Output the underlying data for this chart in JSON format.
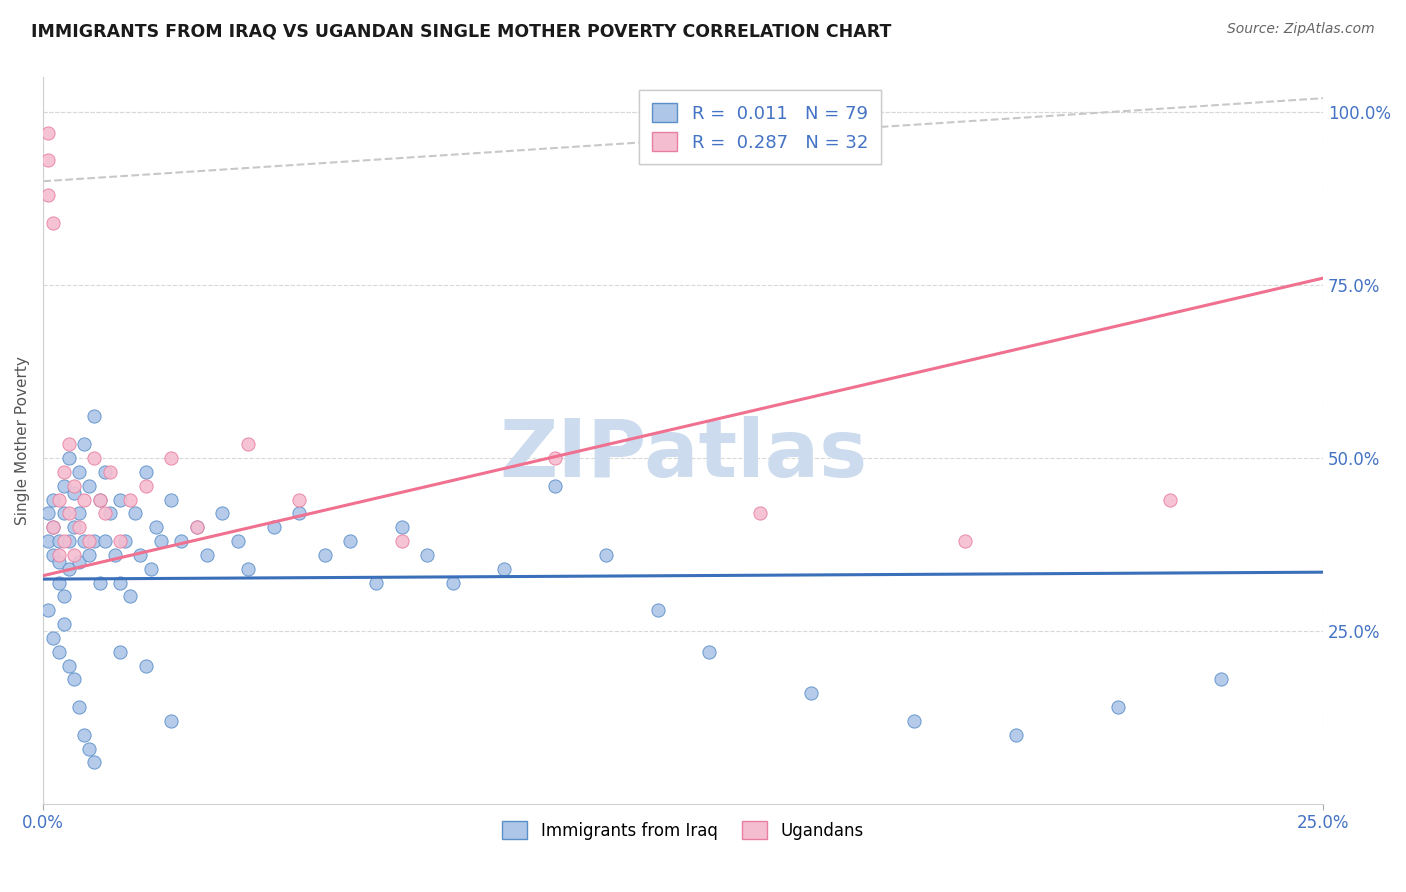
{
  "title": "IMMIGRANTS FROM IRAQ VS UGANDAN SINGLE MOTHER POVERTY CORRELATION CHART",
  "source": "Source: ZipAtlas.com",
  "ylabel": "Single Mother Poverty",
  "legend_label1": "Immigrants from Iraq",
  "legend_label2": "Ugandans",
  "r1": "0.011",
  "n1": "79",
  "r2": "0.287",
  "n2": "32",
  "color_iraq": "#aec6e8",
  "color_iraq_edge": "#5b8fc9",
  "color_uganda": "#f5bdd0",
  "color_uganda_edge": "#e87fa0",
  "color_iraq_line": "#3a6fba",
  "color_uganda_line": "#f07090",
  "color_dashed": "#c8c8c8",
  "watermark_color": "#ccdcee",
  "xlim": [
    0.0,
    0.25
  ],
  "ylim": [
    0.0,
    1.05
  ],
  "yticks": [
    0.25,
    0.5,
    0.75,
    1.0
  ],
  "ytick_labels": [
    "25.0%",
    "50.0%",
    "75.0%",
    "100.0%"
  ],
  "iraq_line_y0": 0.325,
  "iraq_line_y1": 0.335,
  "uganda_line_y0": 0.33,
  "uganda_line_y1": 0.76,
  "dashed_line_x0": 0.0,
  "dashed_line_y0": 0.9,
  "dashed_line_x1": 0.25,
  "dashed_line_y1": 1.02,
  "iraq_points_x": [
    0.001,
    0.001,
    0.002,
    0.002,
    0.002,
    0.003,
    0.003,
    0.003,
    0.004,
    0.004,
    0.004,
    0.005,
    0.005,
    0.005,
    0.006,
    0.006,
    0.007,
    0.007,
    0.007,
    0.008,
    0.008,
    0.009,
    0.009,
    0.01,
    0.01,
    0.011,
    0.011,
    0.012,
    0.012,
    0.013,
    0.014,
    0.015,
    0.015,
    0.016,
    0.017,
    0.018,
    0.019,
    0.02,
    0.021,
    0.022,
    0.023,
    0.025,
    0.027,
    0.03,
    0.032,
    0.035,
    0.038,
    0.04,
    0.045,
    0.05,
    0.055,
    0.06,
    0.065,
    0.07,
    0.075,
    0.08,
    0.09,
    0.1,
    0.11,
    0.12,
    0.13,
    0.15,
    0.17,
    0.19,
    0.21,
    0.23,
    0.001,
    0.002,
    0.003,
    0.004,
    0.005,
    0.006,
    0.007,
    0.008,
    0.009,
    0.01,
    0.015,
    0.02,
    0.025
  ],
  "iraq_points_y": [
    0.38,
    0.42,
    0.36,
    0.4,
    0.44,
    0.32,
    0.35,
    0.38,
    0.42,
    0.46,
    0.3,
    0.34,
    0.38,
    0.5,
    0.4,
    0.45,
    0.35,
    0.42,
    0.48,
    0.38,
    0.52,
    0.36,
    0.46,
    0.38,
    0.56,
    0.32,
    0.44,
    0.38,
    0.48,
    0.42,
    0.36,
    0.32,
    0.44,
    0.38,
    0.3,
    0.42,
    0.36,
    0.48,
    0.34,
    0.4,
    0.38,
    0.44,
    0.38,
    0.4,
    0.36,
    0.42,
    0.38,
    0.34,
    0.4,
    0.42,
    0.36,
    0.38,
    0.32,
    0.4,
    0.36,
    0.32,
    0.34,
    0.46,
    0.36,
    0.28,
    0.22,
    0.16,
    0.12,
    0.1,
    0.14,
    0.18,
    0.28,
    0.24,
    0.22,
    0.26,
    0.2,
    0.18,
    0.14,
    0.1,
    0.08,
    0.06,
    0.22,
    0.2,
    0.12
  ],
  "uganda_points_x": [
    0.001,
    0.001,
    0.001,
    0.002,
    0.002,
    0.003,
    0.003,
    0.004,
    0.004,
    0.005,
    0.005,
    0.006,
    0.006,
    0.007,
    0.008,
    0.009,
    0.01,
    0.011,
    0.012,
    0.013,
    0.015,
    0.017,
    0.02,
    0.025,
    0.03,
    0.04,
    0.05,
    0.07,
    0.1,
    0.14,
    0.18,
    0.22
  ],
  "uganda_points_y": [
    0.97,
    0.93,
    0.88,
    0.84,
    0.4,
    0.44,
    0.36,
    0.48,
    0.38,
    0.52,
    0.42,
    0.36,
    0.46,
    0.4,
    0.44,
    0.38,
    0.5,
    0.44,
    0.42,
    0.48,
    0.38,
    0.44,
    0.46,
    0.5,
    0.4,
    0.52,
    0.44,
    0.38,
    0.5,
    0.42,
    0.38,
    0.44
  ]
}
